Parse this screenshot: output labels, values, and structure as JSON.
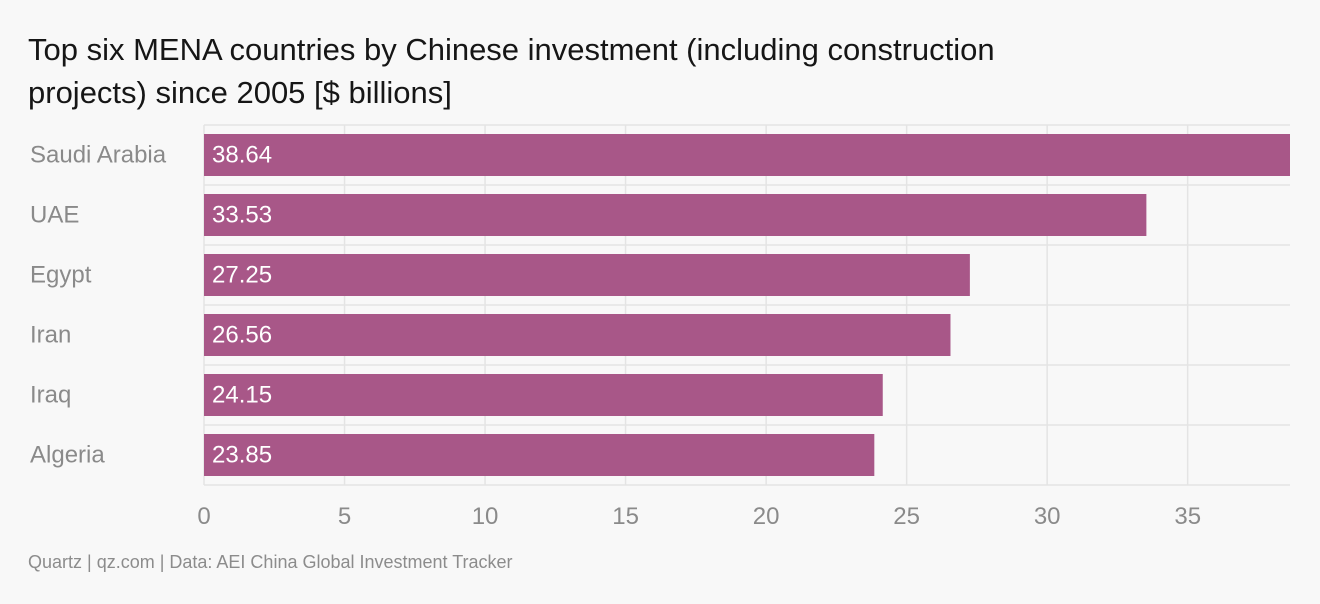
{
  "chart_data": {
    "type": "bar",
    "orientation": "horizontal",
    "title_lines": [
      "Top six MENA countries by Chinese investment (including construction",
      "projects) since 2005 [$ billions]"
    ],
    "categories": [
      "Saudi Arabia",
      "UAE",
      "Egypt",
      "Iran",
      "Iraq",
      "Algeria"
    ],
    "values": [
      38.64,
      33.53,
      27.25,
      26.56,
      24.15,
      23.85
    ],
    "value_labels": [
      "38.64",
      "33.53",
      "27.25",
      "26.56",
      "24.15",
      "23.85"
    ],
    "xticks": [
      0,
      5,
      10,
      15,
      20,
      25,
      30,
      35
    ],
    "xlim": [
      0,
      38.64
    ],
    "grid": true,
    "bar_color": "#a85788",
    "source": "Quartz | qz.com | Data: AEI China Global Investment Tracker"
  }
}
